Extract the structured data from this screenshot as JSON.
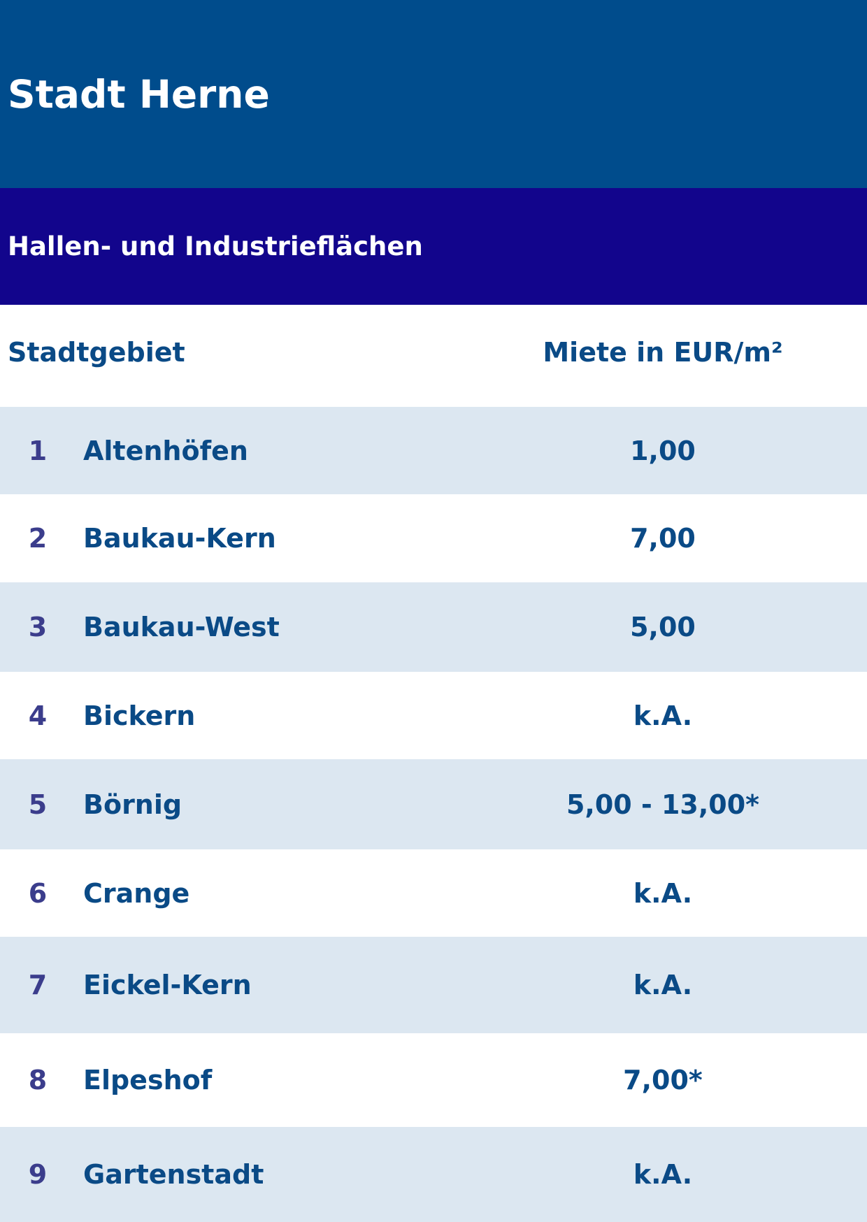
{
  "header": {
    "title": "Stadt Herne"
  },
  "subheader": {
    "title": "Hallen- und Industrieflächen"
  },
  "table": {
    "columns": [
      "Stadtgebiet",
      "Miete in EUR/m²"
    ],
    "rows": [
      {
        "num": "1",
        "name": "Altenhöfen",
        "value": "1,00"
      },
      {
        "num": "2",
        "name": "Baukau-Kern",
        "value": "7,00"
      },
      {
        "num": "3",
        "name": "Baukau-West",
        "value": "5,00"
      },
      {
        "num": "4",
        "name": "Bickern",
        "value": "k.A."
      },
      {
        "num": "5",
        "name": "Börnig",
        "value": "5,00 - 13,00*"
      },
      {
        "num": "6",
        "name": "Crange",
        "value": "k.A."
      },
      {
        "num": "7",
        "name": "Eickel-Kern",
        "value": "k.A."
      },
      {
        "num": "8",
        "name": "Elpeshof",
        "value": "7,00*"
      },
      {
        "num": "9",
        "name": "Gartenstadt",
        "value": "k.A."
      }
    ]
  },
  "colors": {
    "header_bg": "#004c8c",
    "subheader_bg": "#12058c",
    "row_shade": "#dce7f1",
    "text_blue": "#0a4a86",
    "number_blue": "#3b3d8c"
  }
}
